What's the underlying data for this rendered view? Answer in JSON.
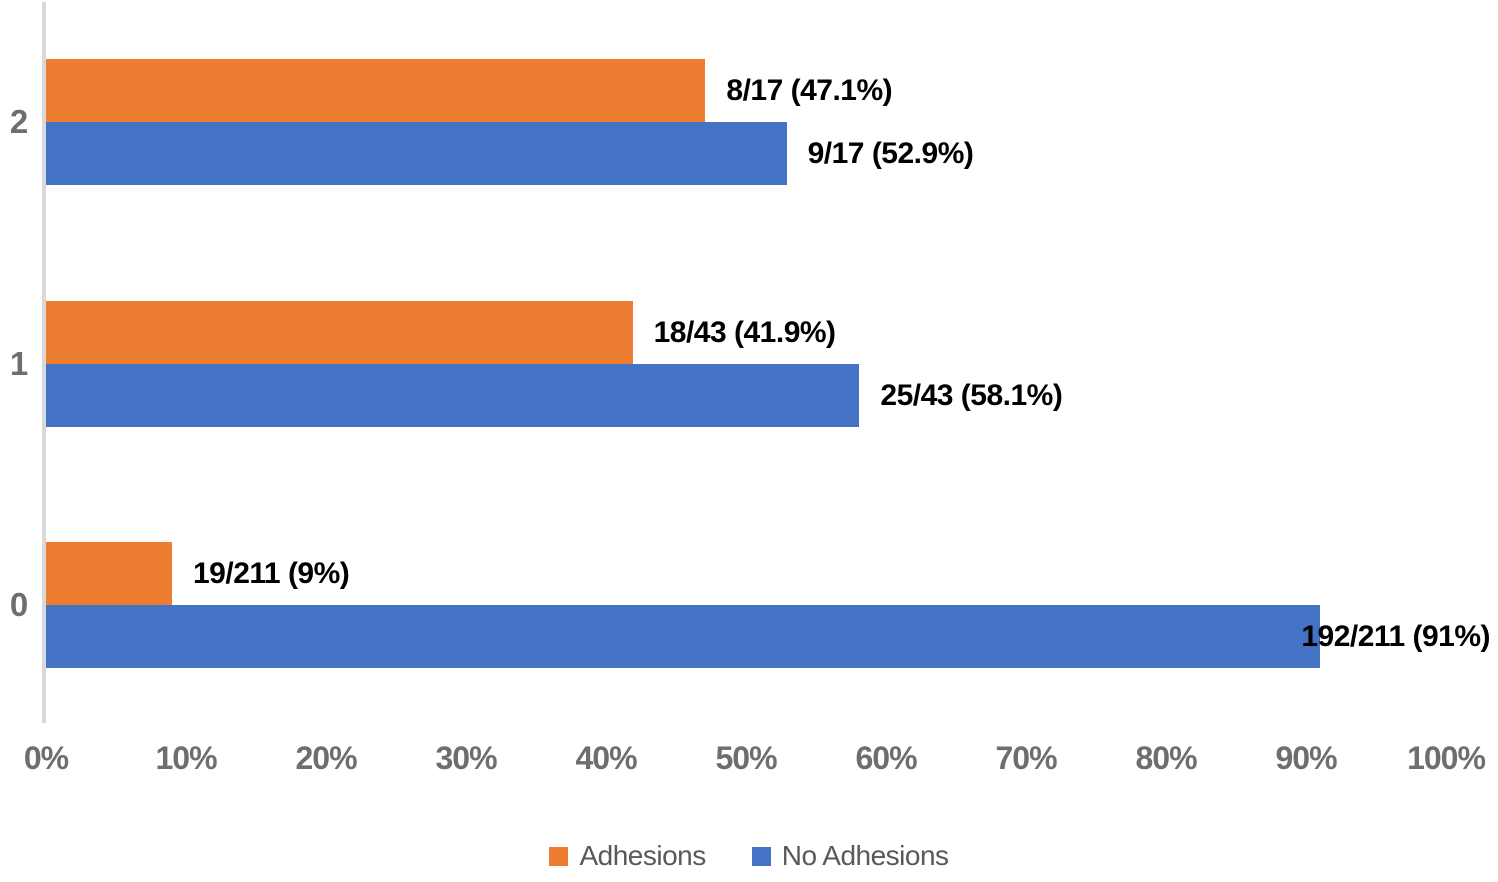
{
  "chart_data": {
    "type": "bar",
    "orientation": "horizontal",
    "title": "",
    "xlabel": "",
    "ylabel": "",
    "categories": [
      "2",
      "1",
      "0"
    ],
    "series": [
      {
        "name": "Adhesions",
        "color": "#ED7D31",
        "values": [
          47.1,
          41.9,
          9
        ],
        "labels": [
          "8/17 (47.1%)",
          "18/43 (41.9%)",
          "19/211 (9%)"
        ]
      },
      {
        "name": "No Adhesions",
        "color": "#4472C4",
        "values": [
          52.9,
          58.1,
          91
        ],
        "labels": [
          "9/17 (52.9%)",
          "25/43 (58.1%)",
          "192/211 (91%)"
        ]
      }
    ],
    "x_ticks": [
      "0%",
      "10%",
      "20%",
      "30%",
      "40%",
      "50%",
      "60%",
      "70%",
      "80%",
      "90%",
      "100%"
    ],
    "xlim": [
      0,
      100
    ],
    "grid": false,
    "legend_position": "bottom",
    "colors": {
      "axis_line": "#D9D9D9",
      "tick_label": "#6E6E6E",
      "category_label": "#6E6E6E",
      "data_label": "#000000",
      "legend_text": "#595959",
      "background": "#FFFFFF"
    }
  }
}
